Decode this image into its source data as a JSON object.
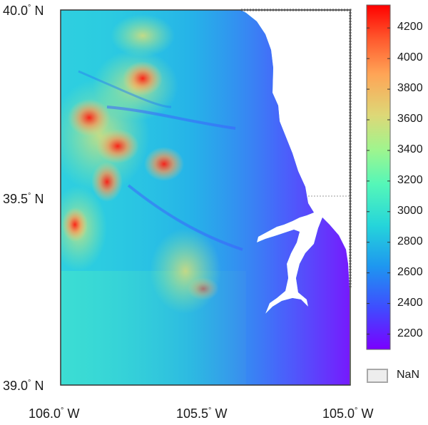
{
  "map": {
    "lat_ticks": [
      {
        "value": 40.0,
        "deg": "40.0",
        "hemi": "N"
      },
      {
        "value": 39.5,
        "deg": "39.5",
        "hemi": "N"
      },
      {
        "value": 39.0,
        "deg": "39.0",
        "hemi": "N"
      }
    ],
    "lon_ticks": [
      {
        "value": -106.0,
        "deg": "106.0",
        "hemi": "W"
      },
      {
        "value": -105.5,
        "deg": "105.5",
        "hemi": "W"
      },
      {
        "value": -105.0,
        "deg": "105.0",
        "hemi": "W"
      }
    ],
    "degree_symbol": "°",
    "extent": {
      "lon_min": -106.0,
      "lon_max": -105.0,
      "lat_min": 39.0,
      "lat_max": 40.0
    }
  },
  "colorbar": {
    "min": 2100,
    "max": 4350,
    "ticks": [
      "2200",
      "2400",
      "2600",
      "2800",
      "3000",
      "3200",
      "3400",
      "3600",
      "3800",
      "4000",
      "4200"
    ],
    "colormap": [
      "#7a00ff",
      "#3f4cff",
      "#1e96f0",
      "#25d5da",
      "#55f7b8",
      "#9ff58e",
      "#ddd877",
      "#ffa456",
      "#ff5a2e",
      "#ff0000"
    ],
    "nan_label": "NaN",
    "nan_color": "#ededed"
  }
}
